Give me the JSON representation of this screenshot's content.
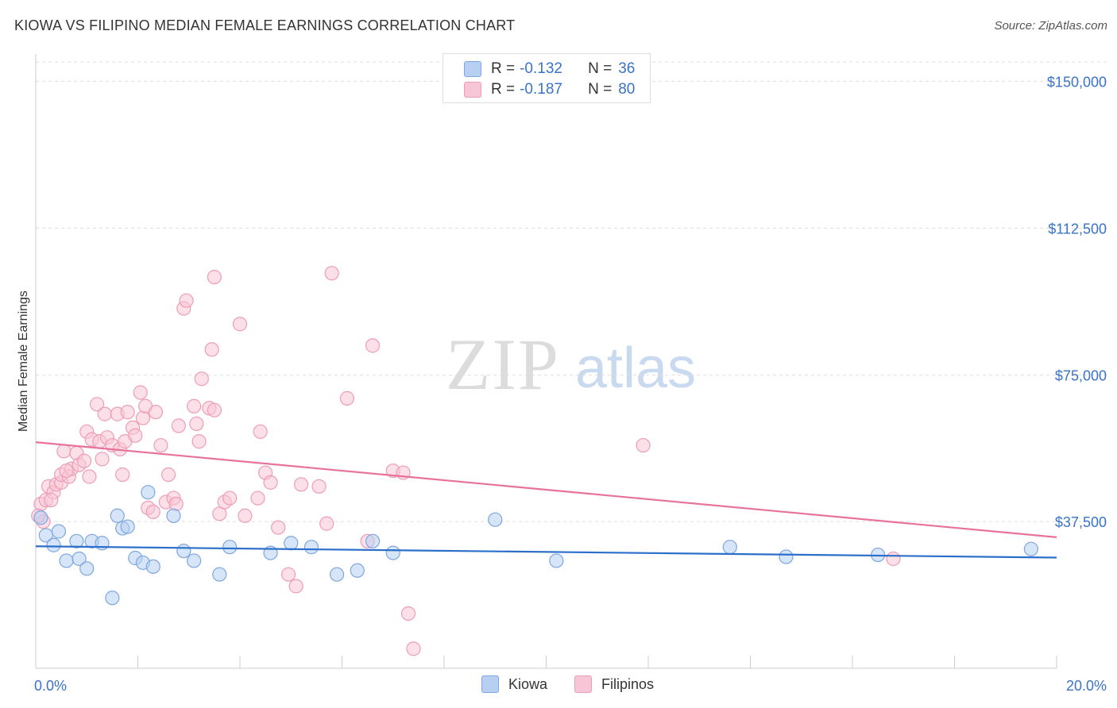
{
  "title": "KIOWA VS FILIPINO MEDIAN FEMALE EARNINGS CORRELATION CHART",
  "source": "Source: ZipAtlas.com",
  "watermark": {
    "zip": "ZIP",
    "atlas": "atlas"
  },
  "colors": {
    "kiowa_fill": "#b7d0f2",
    "kiowa_stroke": "#7ea6e0",
    "kiowa_line": "#2b6fcb",
    "filipinos_fill": "#f7c6d6",
    "filipinos_stroke": "#ee9cb8",
    "filipinos_line": "#e8739a",
    "axis_text": "#3a73c8"
  },
  "legend": {
    "rows": [
      {
        "r_label": "R =",
        "r_value": "-0.132",
        "n_label": "N =",
        "n_value": "36"
      },
      {
        "r_label": "R =",
        "r_value": "-0.187",
        "n_label": "N =",
        "n_value": "80"
      }
    ]
  },
  "bottom_legend": [
    "Kiowa",
    "Filipinos"
  ],
  "chart_data": {
    "type": "scatter",
    "title": "KIOWA VS FILIPINO MEDIAN FEMALE EARNINGS CORRELATION CHART",
    "xlabel": "",
    "ylabel": "Median Female Earnings",
    "xlim": [
      0,
      20
    ],
    "ylim": [
      0,
      155000
    ],
    "x_tick_labels": [
      "0.0%",
      "20.0%"
    ],
    "y_ticks": [
      37500,
      75000,
      112500,
      150000
    ],
    "y_tick_labels": [
      "$37,500",
      "$75,000",
      "$112,500",
      "$150,000"
    ],
    "grid": "horizontal dashed",
    "legend_position": "top-center",
    "series": [
      {
        "name": "Kiowa",
        "r": -0.132,
        "n": 36,
        "trend": {
          "x": [
            0,
            20
          ],
          "y": [
            31200,
            28300
          ]
        },
        "points": [
          [
            0.1,
            38500
          ],
          [
            0.2,
            34000
          ],
          [
            0.35,
            31500
          ],
          [
            0.45,
            35000
          ],
          [
            0.6,
            27500
          ],
          [
            0.8,
            32500
          ],
          [
            0.85,
            28000
          ],
          [
            1.0,
            25500
          ],
          [
            1.1,
            32500
          ],
          [
            1.3,
            32000
          ],
          [
            1.5,
            18000
          ],
          [
            1.6,
            39000
          ],
          [
            1.7,
            35800
          ],
          [
            1.8,
            36200
          ],
          [
            1.95,
            28200
          ],
          [
            2.1,
            27000
          ],
          [
            2.2,
            45000
          ],
          [
            2.3,
            26000
          ],
          [
            2.7,
            39000
          ],
          [
            2.9,
            30000
          ],
          [
            3.1,
            27500
          ],
          [
            3.6,
            24000
          ],
          [
            3.8,
            31000
          ],
          [
            4.6,
            29500
          ],
          [
            5.0,
            32000
          ],
          [
            5.4,
            31000
          ],
          [
            5.9,
            24000
          ],
          [
            6.3,
            25000
          ],
          [
            6.6,
            32500
          ],
          [
            7.0,
            29500
          ],
          [
            9.0,
            38000
          ],
          [
            10.2,
            27500
          ],
          [
            13.6,
            31000
          ],
          [
            14.7,
            28500
          ],
          [
            16.5,
            29000
          ],
          [
            19.5,
            30500
          ]
        ]
      },
      {
        "name": "Filipinos",
        "r": -0.187,
        "n": 80,
        "trend": {
          "x": [
            0,
            20
          ],
          "y": [
            57800,
            33500
          ]
        },
        "points": [
          [
            0.1,
            42000
          ],
          [
            0.15,
            37500
          ],
          [
            0.2,
            43000
          ],
          [
            0.25,
            46500
          ],
          [
            0.35,
            45000
          ],
          [
            0.4,
            47000
          ],
          [
            0.5,
            47500
          ],
          [
            0.5,
            49500
          ],
          [
            0.55,
            55500
          ],
          [
            0.65,
            49000
          ],
          [
            0.7,
            51000
          ],
          [
            0.8,
            55000
          ],
          [
            0.85,
            52000
          ],
          [
            0.95,
            53000
          ],
          [
            1.0,
            60500
          ],
          [
            1.05,
            49000
          ],
          [
            1.1,
            58500
          ],
          [
            1.2,
            67500
          ],
          [
            1.25,
            58000
          ],
          [
            1.3,
            53500
          ],
          [
            1.35,
            65000
          ],
          [
            1.4,
            59000
          ],
          [
            1.5,
            57000
          ],
          [
            1.6,
            65000
          ],
          [
            1.65,
            56000
          ],
          [
            1.7,
            49500
          ],
          [
            1.75,
            58000
          ],
          [
            1.8,
            65500
          ],
          [
            1.9,
            61500
          ],
          [
            1.95,
            59500
          ],
          [
            2.05,
            70500
          ],
          [
            2.1,
            64000
          ],
          [
            2.15,
            67000
          ],
          [
            2.2,
            41000
          ],
          [
            2.3,
            40000
          ],
          [
            2.35,
            65500
          ],
          [
            2.45,
            57000
          ],
          [
            2.55,
            42500
          ],
          [
            2.6,
            49500
          ],
          [
            2.7,
            43500
          ],
          [
            2.75,
            42000
          ],
          [
            2.8,
            62000
          ],
          [
            2.9,
            92000
          ],
          [
            2.95,
            94000
          ],
          [
            3.1,
            67000
          ],
          [
            3.15,
            62500
          ],
          [
            3.2,
            58000
          ],
          [
            3.25,
            74000
          ],
          [
            3.4,
            66500
          ],
          [
            3.5,
            66000
          ],
          [
            3.45,
            81500
          ],
          [
            3.5,
            100000
          ],
          [
            3.6,
            39500
          ],
          [
            3.7,
            42500
          ],
          [
            3.8,
            43500
          ],
          [
            4.0,
            88000
          ],
          [
            4.1,
            39000
          ],
          [
            4.35,
            43500
          ],
          [
            4.4,
            60500
          ],
          [
            4.5,
            50000
          ],
          [
            4.6,
            47500
          ],
          [
            4.75,
            36000
          ],
          [
            4.95,
            24000
          ],
          [
            5.1,
            21000
          ],
          [
            5.2,
            47000
          ],
          [
            5.55,
            46500
          ],
          [
            5.7,
            37000
          ],
          [
            5.8,
            101000
          ],
          [
            6.1,
            69000
          ],
          [
            6.5,
            32500
          ],
          [
            6.6,
            82500
          ],
          [
            7.0,
            50500
          ],
          [
            7.2,
            50000
          ],
          [
            7.3,
            14000
          ],
          [
            7.4,
            5000
          ],
          [
            11.9,
            57000
          ],
          [
            16.8,
            28000
          ],
          [
            0.05,
            39000
          ],
          [
            0.3,
            43000
          ],
          [
            0.6,
            50500
          ]
        ]
      }
    ]
  }
}
